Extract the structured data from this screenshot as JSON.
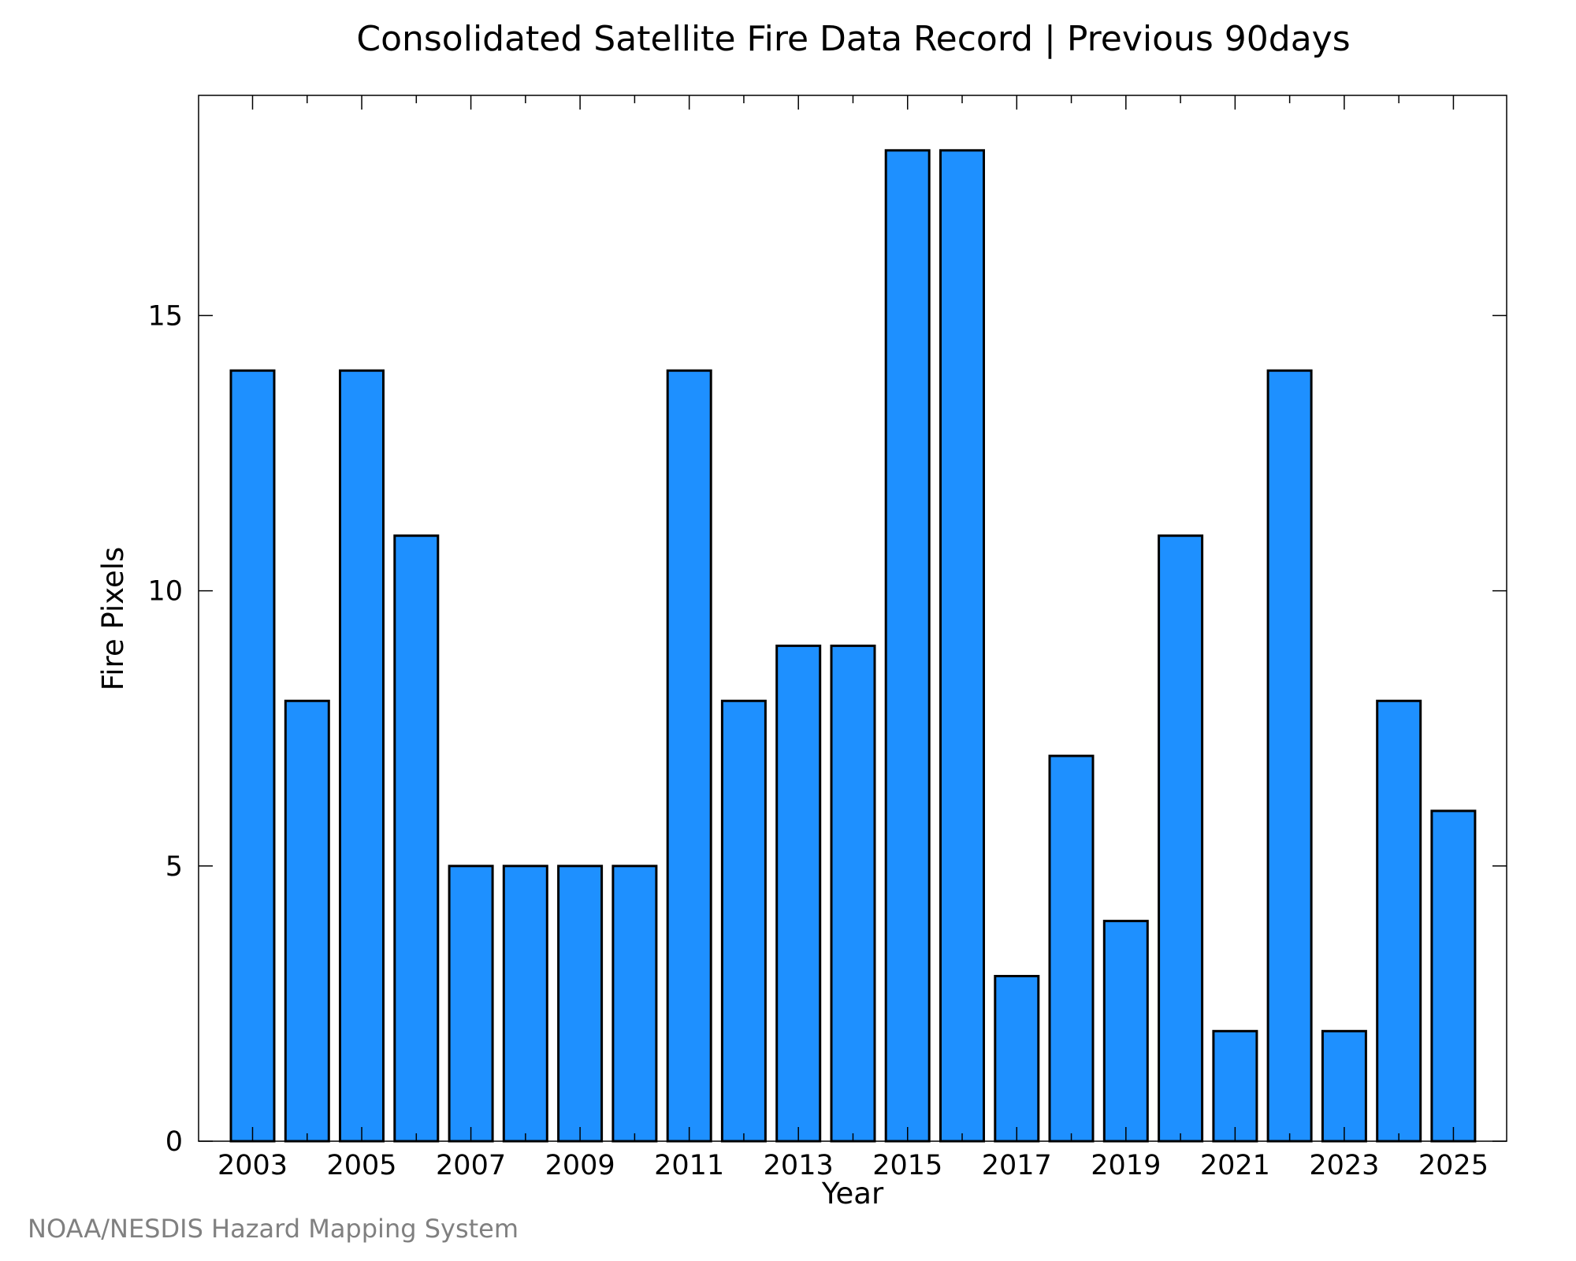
{
  "chart_data": {
    "type": "bar",
    "title": "Consolidated Satellite Fire Data Record | Previous 90days",
    "xlabel": "Year",
    "ylabel": "Fire Pixels",
    "categories": [
      "2003",
      "2004",
      "2005",
      "2006",
      "2007",
      "2008",
      "2009",
      "2010",
      "2011",
      "2012",
      "2013",
      "2014",
      "2015",
      "2016",
      "2017",
      "2018",
      "2019",
      "2020",
      "2021",
      "2022",
      "2023",
      "2024",
      "2025"
    ],
    "values": [
      14,
      8,
      14,
      11,
      5,
      5,
      5,
      5,
      14,
      8,
      9,
      9,
      18,
      18,
      3,
      7,
      4,
      11,
      2,
      14,
      2,
      8,
      6
    ],
    "x_tick_labels": [
      "2003",
      "2005",
      "2007",
      "2009",
      "2011",
      "2013",
      "2015",
      "2017",
      "2019",
      "2021",
      "2023",
      "2025"
    ],
    "y_ticks": [
      0,
      5,
      10,
      15
    ],
    "ylim": [
      0,
      19
    ],
    "grid": false,
    "bar_color": "#1e90ff",
    "bar_edge_color": "#000000"
  },
  "credit": "NOAA/NESDIS Hazard Mapping System"
}
